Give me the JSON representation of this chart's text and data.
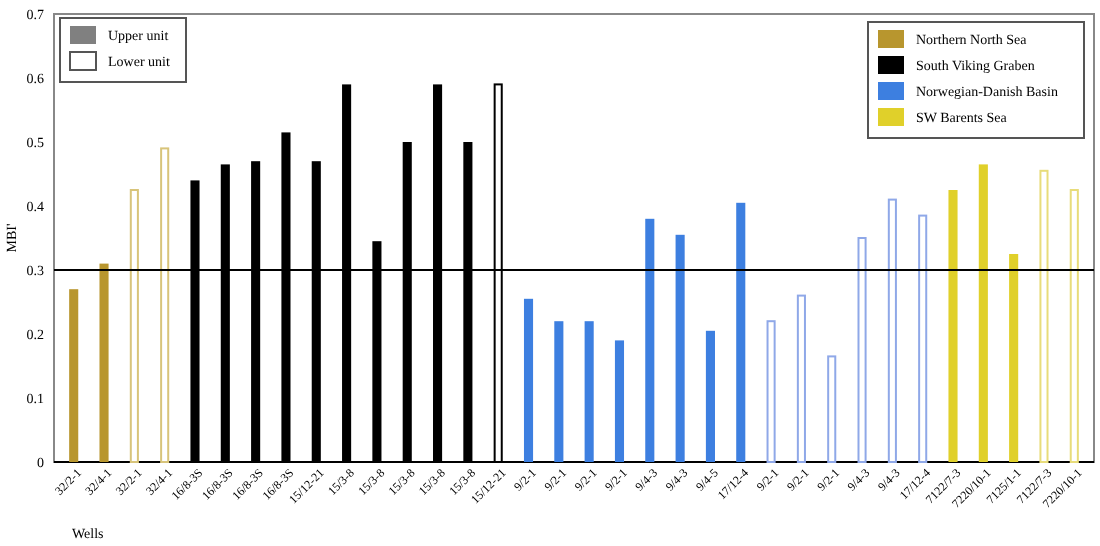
{
  "chart_data": {
    "type": "bar",
    "xlabel": "Wells",
    "ylabel": "MBI'",
    "categories": [
      "32/2-1",
      "32/4-1",
      "32/2-1",
      "32/4-1",
      "16/8-3S",
      "16/8-3S",
      "16/8-3S",
      "16/8-3S",
      "15/12-21",
      "15/3-8",
      "15/3-8",
      "15/3-8",
      "15/3-8",
      "15/3-8",
      "15/12-21",
      "9/2-1",
      "9/2-1",
      "9/2-1",
      "9/2-1",
      "9/4-3",
      "9/4-3",
      "9/4-5",
      "17/12-4",
      "9/2-1",
      "9/2-1",
      "9/2-1",
      "9/4-3",
      "9/4-3",
      "17/12-4",
      "7122/7-3",
      "7220/10-1",
      "7125/1-1",
      "7122/7-3",
      "7220/10-1"
    ],
    "series": [
      {
        "name": "Northern North Sea",
        "color": "#b8962e",
        "values": [
          0.27,
          0.31,
          null,
          null,
          null,
          null,
          null,
          null,
          null,
          null,
          null,
          null,
          null,
          null,
          null,
          null,
          null,
          null,
          null,
          null,
          null,
          null,
          null,
          null,
          null,
          null,
          null,
          null,
          null,
          null,
          null,
          null,
          null,
          null
        ]
      },
      {
        "name": "South Viking Graben",
        "color": "#000000",
        "values": [
          null,
          null,
          null,
          null,
          0.44,
          0.465,
          0.47,
          0.515,
          0.47,
          0.59,
          0.345,
          0.5,
          0.59,
          0.5,
          null,
          null,
          null,
          null,
          null,
          null,
          null,
          null,
          null,
          null,
          null,
          null,
          null,
          null,
          null,
          null,
          null,
          null,
          null,
          null
        ]
      },
      {
        "name": "Norwegian-Danish Basin",
        "color": "#3d7fe0",
        "values": [
          null,
          null,
          null,
          null,
          null,
          null,
          null,
          null,
          null,
          null,
          null,
          null,
          null,
          null,
          null,
          0.255,
          0.22,
          0.22,
          0.19,
          0.38,
          0.355,
          0.205,
          0.405,
          null,
          null,
          null,
          null,
          null,
          null,
          null,
          null,
          null,
          null,
          null
        ]
      },
      {
        "name": "SW Barents Sea",
        "color": "#e0d02a",
        "values": [
          null,
          null,
          null,
          null,
          null,
          null,
          null,
          null,
          null,
          null,
          null,
          null,
          null,
          null,
          null,
          null,
          null,
          null,
          null,
          null,
          null,
          null,
          null,
          null,
          null,
          null,
          null,
          null,
          null,
          0.425,
          0.465,
          0.325,
          null,
          null
        ]
      },
      {
        "color": "#ffffff",
        "values": [
          null,
          null,
          0.425,
          0.49,
          null,
          null,
          null,
          null,
          null,
          null,
          null,
          null,
          null,
          null,
          0.59,
          null,
          null,
          null,
          null,
          null,
          null,
          null,
          null,
          0.22,
          0.26,
          0.165,
          0.35,
          0.41,
          0.385,
          null,
          null,
          null,
          0.455,
          0.425
        ],
        "colors": [
          null,
          null,
          "#d8c47a",
          "#d8c47a",
          null,
          null,
          null,
          null,
          null,
          null,
          null,
          null,
          null,
          null,
          "#000000",
          null,
          null,
          null,
          null,
          null,
          null,
          null,
          null,
          "#8fa8e8",
          "#8fa8e8",
          "#8fa8e8",
          "#8fa8e8",
          "#8fa8e8",
          "#8fa8e8",
          null,
          null,
          null,
          "#e8dc7a",
          "#e8dc7a"
        ]
      }
    ],
    "annotations": [
      "Upper unit",
      "Lower unit"
    ],
    "ylim": [
      0,
      0.7
    ],
    "yticks": [
      0,
      0.1,
      0.2,
      0.3,
      0.4,
      0.5,
      0.6,
      0.7
    ],
    "ref_lines": [
      {
        "axis": "y",
        "value": 0.3,
        "color": "#000000"
      }
    ],
    "legend": "top right"
  }
}
